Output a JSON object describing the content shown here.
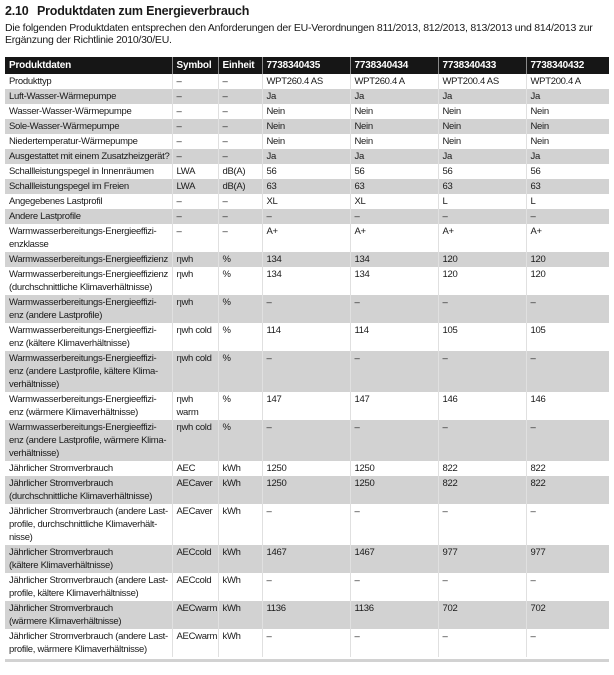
{
  "heading": {
    "number": "2.10",
    "title": "Produktdaten zum Energieverbrauch"
  },
  "intro": "Die folgenden Produktdaten entsprechen den Anforderungen der EU-Verordnungen 811/2013, 812/2013, 813/2013 und 814/2013 zur Ergänzung der Richtlinie 2010/30/EU.",
  "colors": {
    "table_header_bg": "#161616",
    "table_header_text": "#ffffff",
    "shaded_row_bg": "#d2d2d2",
    "column_separator": "#e0e0e0"
  },
  "table": {
    "headers": [
      "Produktdaten",
      "Symbol",
      "Einheit",
      "7738340435",
      "7738340434",
      "7738340433",
      "7738340432"
    ],
    "rows": [
      {
        "label": "Produkttyp",
        "symbol": "–",
        "unit": "–",
        "values": [
          "WPT260.4 AS",
          "WPT260.4 A",
          "WPT200.4 AS",
          "WPT200.4 A"
        ],
        "shaded": false
      },
      {
        "label": "Luft-Wasser-Wärmepumpe",
        "symbol": "–",
        "unit": "–",
        "values": [
          "Ja",
          "Ja",
          "Ja",
          "Ja"
        ],
        "shaded": true
      },
      {
        "label": "Wasser-Wasser-Wärmepumpe",
        "symbol": "–",
        "unit": "–",
        "values": [
          "Nein",
          "Nein",
          "Nein",
          "Nein"
        ],
        "shaded": false
      },
      {
        "label": "Sole-Wasser-Wärmepumpe",
        "symbol": "–",
        "unit": "–",
        "values": [
          "Nein",
          "Nein",
          "Nein",
          "Nein"
        ],
        "shaded": true
      },
      {
        "label": "Niedertemperatur-Wärmepumpe",
        "symbol": "–",
        "unit": "–",
        "values": [
          "Nein",
          "Nein",
          "Nein",
          "Nein"
        ],
        "shaded": false
      },
      {
        "label": "Ausgestattet mit einem Zusatzheizgerät?",
        "symbol": "–",
        "unit": "–",
        "values": [
          "Ja",
          "Ja",
          "Ja",
          "Ja"
        ],
        "shaded": true
      },
      {
        "label": "Schallleistungspegel in Innenräumen",
        "symbol": "LWA",
        "unit": "dB(A)",
        "values": [
          "56",
          "56",
          "56",
          "56"
        ],
        "shaded": false
      },
      {
        "label": "Schallleistungspegel im Freien",
        "symbol": "LWA",
        "unit": "dB(A)",
        "values": [
          "63",
          "63",
          "63",
          "63"
        ],
        "shaded": true
      },
      {
        "label": "Angegebenes Lastprofil",
        "symbol": "–",
        "unit": "–",
        "values": [
          "XL",
          "XL",
          "L",
          "L"
        ],
        "shaded": false
      },
      {
        "label": "Andere Lastprofile",
        "symbol": "–",
        "unit": "–",
        "values": [
          "–",
          "–",
          "–",
          "–"
        ],
        "shaded": true
      },
      {
        "label": "Warmwasserbereitungs-Energieeffizi-\nenzklasse",
        "symbol": "–",
        "unit": "–",
        "values": [
          "A+",
          "A+",
          "A+",
          "A+"
        ],
        "shaded": false
      },
      {
        "label": "Warmwasserbereitungs-Energieeffizienz",
        "symbol": "ηwh",
        "unit": "%",
        "values": [
          "134",
          "134",
          "120",
          "120"
        ],
        "shaded": true
      },
      {
        "label": "Warmwasserbereitungs-Energieeffizienz\n(durchschnittliche Klimaverhältnisse)",
        "symbol": "ηwh",
        "unit": "%",
        "values": [
          "134",
          "134",
          "120",
          "120"
        ],
        "shaded": false
      },
      {
        "label": "Warmwasserbereitungs-Energieeffizi-\nenz (andere Lastprofile)",
        "symbol": "ηwh",
        "unit": "%",
        "values": [
          "–",
          "–",
          "–",
          "–"
        ],
        "shaded": true
      },
      {
        "label": "Warmwasserbereitungs-Energieeffizi-\nenz (kältere Klimaverhältnisse)",
        "symbol": "ηwh cold",
        "unit": "%",
        "values": [
          "114",
          "114",
          "105",
          "105"
        ],
        "shaded": false
      },
      {
        "label": "Warmwasserbereitungs-Energieeffizi-\nenz (andere Lastprofile, kältere Klima-\nverhältnisse)",
        "symbol": "ηwh cold",
        "unit": "%",
        "values": [
          "–",
          "–",
          "–",
          "–"
        ],
        "shaded": true
      },
      {
        "label": "Warmwasserbereitungs-Energieeffizi-\nenz (wärmere Klimaverhältnisse)",
        "symbol": "ηwh warm",
        "unit": "%",
        "values": [
          "147",
          "147",
          "146",
          "146"
        ],
        "shaded": false
      },
      {
        "label": "Warmwasserbereitungs-Energieeffizi-\nenz (andere Lastprofile, wärmere Klima-\nverhältnisse)",
        "symbol": "ηwh cold",
        "unit": "%",
        "values": [
          "–",
          "–",
          "–",
          "–"
        ],
        "shaded": true
      },
      {
        "label": "Jährlicher Stromverbrauch",
        "symbol": "AEC",
        "unit": "kWh",
        "values": [
          "1250",
          "1250",
          "822",
          "822"
        ],
        "shaded": false
      },
      {
        "label": "Jährlicher Stromverbrauch\n(durchschnittliche Klimaverhältnisse)",
        "symbol": "AECaver",
        "unit": "kWh",
        "values": [
          "1250",
          "1250",
          "822",
          "822"
        ],
        "shaded": true
      },
      {
        "label": "Jährlicher Stromverbrauch (andere Last-\nprofile, durchschnittliche Klimaverhält-\nnisse)",
        "symbol": "AECaver",
        "unit": "kWh",
        "values": [
          "–",
          "–",
          "–",
          "–"
        ],
        "shaded": false
      },
      {
        "label": "Jährlicher Stromverbrauch\n(kältere Klimaverhältnisse)",
        "symbol": "AECcold",
        "unit": "kWh",
        "values": [
          "1467",
          "1467",
          "977",
          "977"
        ],
        "shaded": true
      },
      {
        "label": "Jährlicher Stromverbrauch (andere Last-\nprofile, kältere Klimaverhältnisse)",
        "symbol": "AECcold",
        "unit": "kWh",
        "values": [
          "–",
          "–",
          "–",
          "–"
        ],
        "shaded": false
      },
      {
        "label": "Jährlicher Stromverbrauch\n(wärmere Klimaverhältnisse)",
        "symbol": "AECwarm",
        "unit": "kWh",
        "values": [
          "1136",
          "1136",
          "702",
          "702"
        ],
        "shaded": true
      },
      {
        "label": "Jährlicher Stromverbrauch (andere Last-\nprofile, wärmere Klimaverhältnisse)",
        "symbol": "AECwarm",
        "unit": "kWh",
        "values": [
          "–",
          "–",
          "–",
          "–"
        ],
        "shaded": false
      }
    ]
  }
}
